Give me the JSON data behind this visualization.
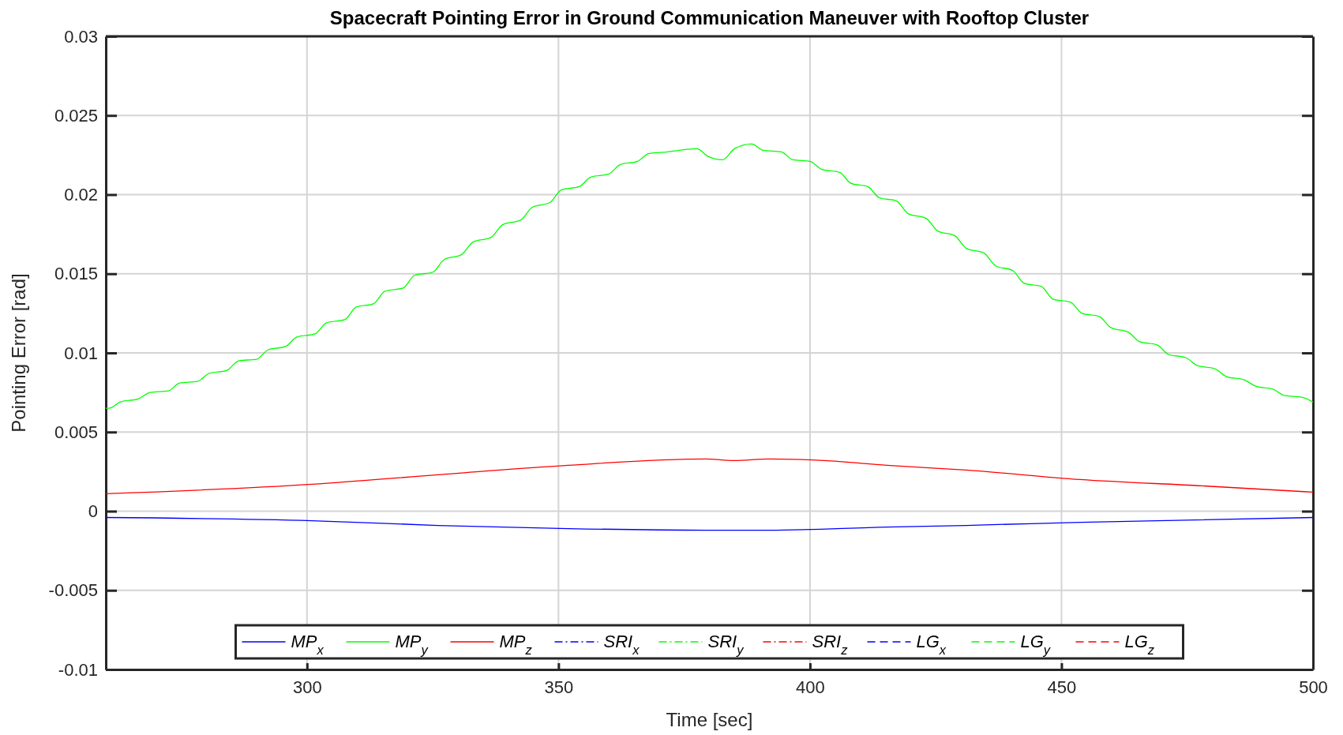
{
  "chart_data": {
    "type": "line",
    "title": "Spacecraft Pointing Error in Ground Communication Maneuver with Rooftop Cluster",
    "xlabel": "Time [sec]",
    "ylabel": "Pointing Error [rad]",
    "xlim": [
      260,
      500
    ],
    "xticks": [
      300,
      350,
      400,
      450,
      500
    ],
    "ylim": [
      -0.01,
      0.03
    ],
    "yticks": [
      -0.01,
      -0.005,
      0,
      0.005,
      0.01,
      0.015,
      0.02,
      0.025,
      0.03
    ],
    "grid": true,
    "legend": "bottom",
    "marker": "none",
    "series": [
      {
        "name": "MP$_{x}$",
        "color": "#0000ff",
        "line_style": "solid",
        "x": [
          260,
          301,
          326,
          352,
          379.3,
          384.8,
          391.9,
          415.3,
          431,
          453.7,
          500
        ],
        "values": [
          -0.0004,
          -0.0006,
          -0.0009,
          -0.0011,
          -0.0012,
          -0.0012,
          -0.0012,
          -0.001,
          -0.0009,
          -0.0007,
          -0.0004
        ]
      },
      {
        "name": "MP$_{y}$",
        "color": "#00ff00",
        "line_style": "solid",
        "x": [
          260,
          260.6,
          262.9,
          266.5,
          268.8,
          272.4,
          274.7,
          278.2,
          280.5,
          284.1,
          286.4,
          290,
          292.3,
          295.7,
          298,
          301.6,
          303.9,
          307.5,
          309.8,
          313.2,
          315.5,
          319.1,
          321.4,
          325,
          327.3,
          330.7,
          333,
          336.6,
          338.9,
          342.5,
          344.8,
          348.3,
          350.6,
          354.1,
          356.4,
          360,
          362.3,
          365.7,
          368,
          371.7,
          374,
          377.5,
          379.8,
          382.6,
          385,
          388.4,
          390.7,
          394.3,
          396.6,
          400,
          402.3,
          405.9,
          408.2,
          411.5,
          413.8,
          417.2,
          419.5,
          423.1,
          425.4,
          428.8,
          431.1,
          434.6,
          436.9,
          440.3,
          442.6,
          446,
          448.3,
          451.8,
          454.1,
          457.5,
          459.8,
          463.3,
          465.6,
          469,
          471.3,
          474.7,
          477,
          480.5,
          482.8,
          486.3,
          488.6,
          492.1,
          494.4,
          497.8,
          500
        ],
        "values": [
          0.0065,
          0.0065,
          0.0069,
          0.0071,
          0.0075,
          0.0076,
          0.0081,
          0.0082,
          0.0087,
          0.0089,
          0.0095,
          0.0096,
          0.0102,
          0.0104,
          0.011,
          0.0112,
          0.0119,
          0.0121,
          0.0129,
          0.0131,
          0.0139,
          0.0141,
          0.0149,
          0.0151,
          0.0159,
          0.0162,
          0.017,
          0.0173,
          0.0181,
          0.0184,
          0.0192,
          0.0195,
          0.0203,
          0.0205,
          0.0211,
          0.0213,
          0.0219,
          0.0221,
          0.0226,
          0.0227,
          0.0228,
          0.0229,
          0.0224,
          0.0222,
          0.0229,
          0.0232,
          0.0228,
          0.0227,
          0.0222,
          0.0221,
          0.0216,
          0.0214,
          0.0207,
          0.0205,
          0.0198,
          0.0196,
          0.0188,
          0.0185,
          0.0177,
          0.0174,
          0.0166,
          0.0163,
          0.0155,
          0.0152,
          0.0144,
          0.0142,
          0.0134,
          0.0132,
          0.0125,
          0.0123,
          0.0116,
          0.0113,
          0.0107,
          0.0105,
          0.0099,
          0.0097,
          0.0092,
          0.009,
          0.0085,
          0.0083,
          0.0079,
          0.0077,
          0.0073,
          0.0072,
          0.0069
        ]
      },
      {
        "name": "MP$_{z}$",
        "color": "#ff0000",
        "line_style": "solid",
        "x": [
          260,
          301,
          326,
          351.9,
          379.3,
          384.8,
          391.9,
          402.8,
          415.3,
          431,
          453.7,
          478,
          500
        ],
        "values": [
          0.0011,
          0.0017,
          0.0023,
          0.0029,
          0.0033,
          0.0032,
          0.0033,
          0.0032,
          0.0029,
          0.0026,
          0.002,
          0.0016,
          0.0012
        ]
      },
      {
        "name": "SRI$_{x}$",
        "color": "#0000ff",
        "line_style": "dashdot"
      },
      {
        "name": "SRI$_{y}$",
        "color": "#00ff00",
        "line_style": "dashdot"
      },
      {
        "name": "SRI$_{z}$",
        "color": "#ff0000",
        "line_style": "dashdot"
      },
      {
        "name": "LG$_{x}$",
        "color": "#0000ff",
        "line_style": "dashed"
      },
      {
        "name": "LG$_{y}$",
        "color": "#00ff00",
        "line_style": "dashed"
      },
      {
        "name": "LG$_{z}$",
        "color": "#ff0000",
        "line_style": "dashed"
      }
    ]
  }
}
